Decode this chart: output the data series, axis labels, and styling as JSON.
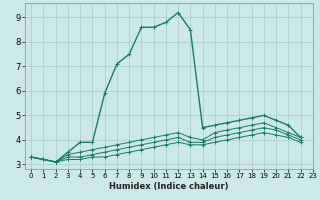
{
  "xlabel": "Humidex (Indice chaleur)",
  "background_color": "#cce8e8",
  "grid_color": "#afd0cc",
  "line_color": "#1a7a6a",
  "xlim": [
    -0.5,
    23
  ],
  "ylim": [
    2.8,
    9.6
  ],
  "xticks": [
    0,
    1,
    2,
    3,
    4,
    5,
    6,
    7,
    8,
    9,
    10,
    11,
    12,
    13,
    14,
    15,
    16,
    17,
    18,
    19,
    20,
    21,
    22,
    23
  ],
  "yticks": [
    3,
    4,
    5,
    6,
    7,
    8,
    9
  ],
  "series": [
    [
      3.3,
      3.2,
      3.1,
      3.5,
      3.9,
      3.9,
      5.9,
      7.1,
      7.5,
      8.6,
      8.6,
      8.8,
      9.2,
      8.5,
      4.5,
      4.6,
      4.7,
      4.8,
      4.9,
      5.0,
      4.8,
      4.6,
      4.1
    ],
    [
      3.3,
      3.2,
      3.1,
      3.4,
      3.5,
      3.6,
      3.7,
      3.8,
      3.9,
      4.0,
      4.1,
      4.2,
      4.3,
      4.1,
      4.0,
      4.3,
      4.4,
      4.5,
      4.6,
      4.7,
      4.5,
      4.3,
      4.1
    ],
    [
      3.3,
      3.2,
      3.1,
      3.3,
      3.3,
      3.4,
      3.5,
      3.6,
      3.7,
      3.8,
      3.9,
      4.0,
      4.1,
      3.9,
      3.9,
      4.1,
      4.2,
      4.3,
      4.4,
      4.5,
      4.4,
      4.2,
      4.0
    ],
    [
      3.3,
      3.2,
      3.1,
      3.2,
      3.2,
      3.3,
      3.3,
      3.4,
      3.5,
      3.6,
      3.7,
      3.8,
      3.9,
      3.8,
      3.8,
      3.9,
      4.0,
      4.1,
      4.2,
      4.3,
      4.2,
      4.1,
      3.9
    ]
  ]
}
